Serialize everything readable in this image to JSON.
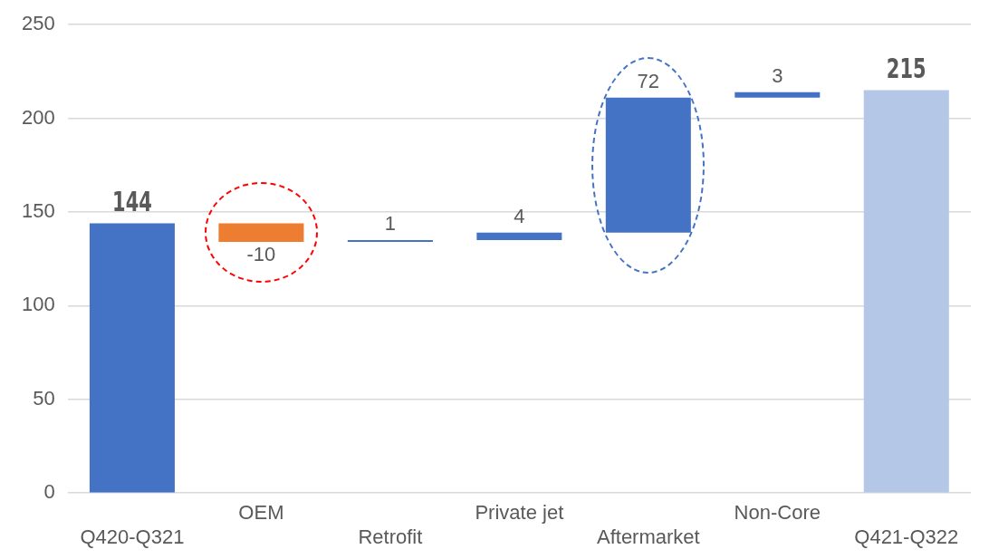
{
  "chart_data": {
    "type": "bar",
    "categories": [
      "Q420-Q321",
      "OEM",
      "Retrofit",
      "Private jet",
      "Aftermarket",
      "Non-Core",
      "Q421-Q322"
    ],
    "values": [
      144,
      -10,
      1,
      4,
      72,
      3,
      215
    ],
    "base": [
      0,
      144,
      134,
      135,
      139,
      211,
      0
    ],
    "colors": [
      "#4472c4",
      "#ed7d31",
      "#4472c4",
      "#4472c4",
      "#4472c4",
      "#4472c4",
      "#b4c7e7"
    ],
    "ylim": [
      0,
      250
    ],
    "yticks": [
      0,
      50,
      100,
      150,
      200,
      250
    ],
    "grid": "y",
    "legend": false,
    "data_labels": true
  }
}
